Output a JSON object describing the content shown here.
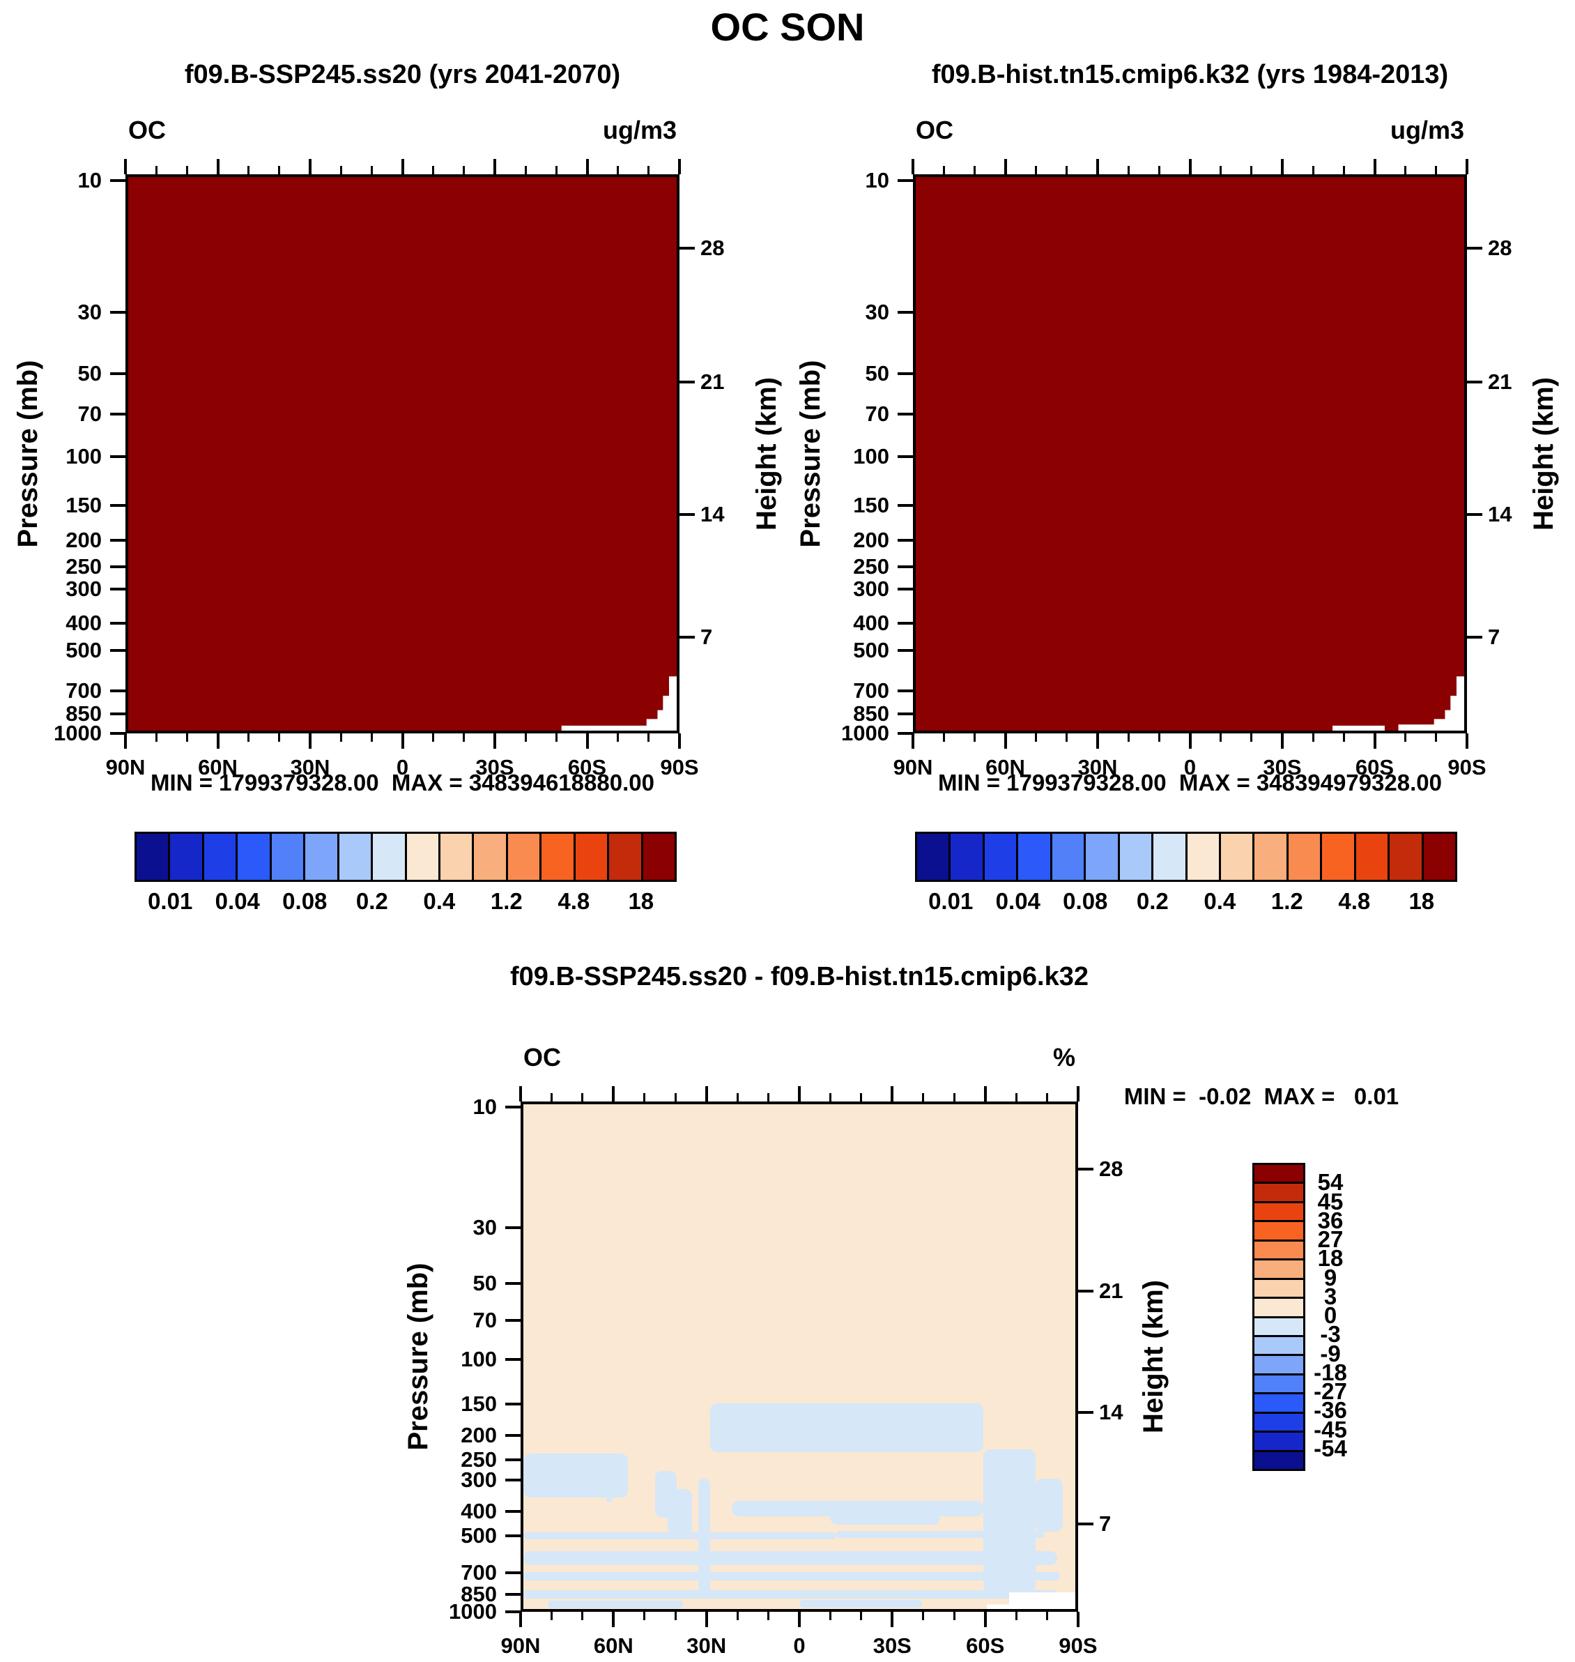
{
  "ui": {
    "main_title": "OC SON",
    "panel1": {
      "subtitle": "f09.B-SSP245.ss20 (yrs 2041-2070)",
      "field_label": "OC",
      "units_label": "ug/m3",
      "minmax": "MIN = 1799379328.00  MAX = 348394618880.00"
    },
    "panel2": {
      "subtitle": "f09.B-hist.tn15.cmip6.k32 (yrs 1984-2013)",
      "field_label": "OC",
      "units_label": "ug/m3",
      "minmax": "MIN = 1799379328.00  MAX = 348394979328.00"
    },
    "panel3": {
      "subtitle": "f09.B-SSP245.ss20 - f09.B-hist.tn15.cmip6.k32",
      "field_label": "OC",
      "units_label": "%",
      "minmax": "MIN =  -0.02  MAX =   0.01"
    },
    "axes": {
      "pressure_title": "Pressure (mb)",
      "height_title": "Height (km)",
      "lat_labels": [
        "90N",
        "60N",
        "30N",
        "0",
        "30S",
        "60S",
        "90S"
      ],
      "pressure_mb": [
        10,
        30,
        50,
        70,
        100,
        150,
        200,
        250,
        300,
        400,
        500,
        700,
        850,
        1000
      ],
      "height_km": [
        28,
        21,
        14,
        7
      ]
    },
    "colorbar_abs": {
      "labels": [
        "0.01",
        "0.04",
        "0.08",
        "0.2",
        "0.4",
        "1.2",
        "4.8",
        "18"
      ],
      "colors": [
        "#0a108f",
        "#1527c8",
        "#1e3fe8",
        "#2b59fa",
        "#5180f8",
        "#7da5f9",
        "#a9c9fb",
        "#d6e7f8",
        "#fbe8d2",
        "#fad3ae",
        "#f9ae7d",
        "#f98b50",
        "#f96322",
        "#e94410",
        "#c32b0b",
        "#8b0000"
      ]
    },
    "colorbar_diff": {
      "labels": [
        "54",
        "45",
        "36",
        "27",
        "18",
        "9",
        "3",
        "0",
        "-3",
        "-9",
        "-18",
        "-27",
        "-36",
        "-45",
        "-54"
      ],
      "colors": [
        "#8b0000",
        "#c32b0b",
        "#e94410",
        "#f96322",
        "#f98b50",
        "#f9ae7d",
        "#fad3ae",
        "#fbe8d2",
        "#d6e7f8",
        "#a9c9fb",
        "#7da5f9",
        "#5180f8",
        "#2b59fa",
        "#1e3fe8",
        "#1527c8",
        "#0a108f"
      ]
    },
    "colors": {
      "saturated_fill": "#8b0000",
      "diff_background": "#fbe8d2",
      "diff_negative": "#d6e7f8",
      "mask": "#ffffff"
    }
  },
  "chart_data": [
    {
      "type": "heatmap",
      "panel": "top-left",
      "title": "f09.B-SSP245.ss20 (yrs 2041-2070)",
      "variable": "OC",
      "season": "SON",
      "units": "ug/m3",
      "x_axis": {
        "label": "latitude",
        "ticks": [
          "90N",
          "60N",
          "30N",
          "0",
          "30S",
          "60S",
          "90S"
        ],
        "minor_tick_deg": 10
      },
      "y_axis": {
        "label": "Pressure (mb)",
        "scale": "log",
        "ticks_mb": [
          10,
          30,
          50,
          70,
          100,
          150,
          200,
          250,
          300,
          400,
          500,
          700,
          850,
          1000
        ]
      },
      "y2_axis": {
        "label": "Height (km)",
        "ticks_km": [
          28,
          21,
          14,
          7
        ]
      },
      "stats": {
        "min": 1799379328,
        "max": 348394618880
      },
      "labeled_levels": [
        0.01,
        0.04,
        0.08,
        0.2,
        0.4,
        1.2,
        4.8,
        18
      ],
      "field": "entire latitude-pressure section saturated in the top color bin (> 18, dark red); white below-surface mask near the South Pole at lowest levels",
      "surface_mask_polygons": [
        [
          [
            79,
            99.1
          ],
          [
            94.5,
            99.1
          ],
          [
            94.5,
            97.9
          ],
          [
            96.5,
            97.9
          ],
          [
            96.5,
            96.3
          ],
          [
            97.5,
            96.3
          ],
          [
            97.5,
            93.7
          ],
          [
            98.6,
            93.7
          ],
          [
            98.6,
            90.2
          ],
          [
            100,
            90.2
          ],
          [
            100,
            100
          ],
          [
            79,
            100
          ]
        ]
      ]
    },
    {
      "type": "heatmap",
      "panel": "top-right",
      "title": "f09.B-hist.tn15.cmip6.k32 (yrs 1984-2013)",
      "variable": "OC",
      "season": "SON",
      "units": "ug/m3",
      "x_axis": {
        "label": "latitude",
        "ticks": [
          "90N",
          "60N",
          "30N",
          "0",
          "30S",
          "60S",
          "90S"
        ],
        "minor_tick_deg": 10
      },
      "y_axis": {
        "label": "Pressure (mb)",
        "scale": "log",
        "ticks_mb": [
          10,
          30,
          50,
          70,
          100,
          150,
          200,
          250,
          300,
          400,
          500,
          700,
          850,
          1000
        ]
      },
      "y2_axis": {
        "label": "Height (km)",
        "ticks_km": [
          28,
          21,
          14,
          7
        ]
      },
      "stats": {
        "min": 1799379328,
        "max": 348394979328
      },
      "labeled_levels": [
        0.01,
        0.04,
        0.08,
        0.2,
        0.4,
        1.2,
        4.8,
        18
      ],
      "field": "entire latitude-pressure section saturated in the top color bin (> 18, dark red); white below-surface mask near the South Pole at lowest levels",
      "surface_mask_polygons": [
        [
          [
            76,
            99.1
          ],
          [
            85.5,
            99.1
          ],
          [
            85.5,
            100
          ],
          [
            76,
            100
          ]
        ],
        [
          [
            88,
            98.9
          ],
          [
            94.5,
            98.9
          ],
          [
            94.5,
            97.9
          ],
          [
            96.5,
            97.9
          ],
          [
            96.5,
            96.3
          ],
          [
            97.5,
            96.3
          ],
          [
            97.5,
            93.7
          ],
          [
            98.6,
            93.7
          ],
          [
            98.6,
            90.2
          ],
          [
            100,
            90.2
          ],
          [
            100,
            100
          ],
          [
            88,
            100
          ]
        ]
      ]
    },
    {
      "type": "heatmap",
      "panel": "bottom-difference",
      "title": "f09.B-SSP245.ss20 - f09.B-hist.tn15.cmip6.k32",
      "variable": "OC",
      "units": "%",
      "x_axis": {
        "label": "latitude",
        "ticks": [
          "90N",
          "60N",
          "30N",
          "0",
          "30S",
          "60S",
          "90S"
        ],
        "minor_tick_deg": 10
      },
      "y_axis": {
        "label": "Pressure (mb)",
        "scale": "log",
        "ticks_mb": [
          10,
          30,
          50,
          70,
          100,
          150,
          200,
          250,
          300,
          400,
          500,
          700,
          850,
          1000
        ]
      },
      "y2_axis": {
        "label": "Height (km)",
        "ticks_km": [
          28,
          21,
          14,
          7
        ]
      },
      "stats": {
        "min": -0.02,
        "max": 0.01
      },
      "levels": [
        -54,
        -45,
        -36,
        -27,
        -18,
        -9,
        -3,
        0,
        3,
        9,
        18,
        27,
        36,
        45,
        54
      ],
      "background_bin": "0 to 3 (pale cream)",
      "negative_bin": "-3 to 0 (pale blue)",
      "negative_regions": [
        {
          "lat": [
            29,
            -60
          ],
          "p": [
            150,
            235
          ]
        },
        {
          "lat": [
            90,
            56
          ],
          "p": [
            238,
            358
          ]
        },
        {
          "lat": [
            63,
            61
          ],
          "p": [
            245,
            375
          ]
        },
        {
          "lat": [
            47,
            40
          ],
          "p": [
            280,
            430
          ]
        },
        {
          "lat": [
            43,
            35
          ],
          "p": [
            330,
            505
          ]
        },
        {
          "lat": [
            33,
            29
          ],
          "p": [
            300,
            900
          ]
        },
        {
          "lat": [
            22,
            -60
          ],
          "p": [
            368,
            424
          ]
        },
        {
          "lat": [
            -10,
            -46
          ],
          "p": [
            398,
            458
          ]
        },
        {
          "lat": [
            90,
            -12
          ],
          "p": [
            492,
            526
          ]
        },
        {
          "lat": [
            -12,
            -80
          ],
          "p": [
            486,
            520
          ]
        },
        {
          "lat": [
            90,
            -84
          ],
          "p": [
            588,
            668
          ]
        },
        {
          "lat": [
            90,
            -85
          ],
          "p": [
            712,
            768
          ]
        },
        {
          "lat": [
            90,
            -84
          ],
          "p": [
            843,
            908
          ]
        },
        {
          "lat": [
            82,
            38
          ],
          "p": [
            926,
            996
          ]
        },
        {
          "lat": [
            0,
            -40
          ],
          "p": [
            922,
            988
          ]
        },
        {
          "lat": [
            -60,
            -77
          ],
          "p": [
            230,
            855
          ]
        },
        {
          "lat": [
            -77,
            -86
          ],
          "p": [
            300,
            490
          ]
        }
      ],
      "surface_mask_polygons": [
        [
          [
            84,
            99.1
          ],
          [
            88,
            99.1
          ],
          [
            88,
            96.7
          ],
          [
            100,
            96.7
          ],
          [
            100,
            100
          ],
          [
            84,
            100
          ]
        ]
      ]
    }
  ]
}
